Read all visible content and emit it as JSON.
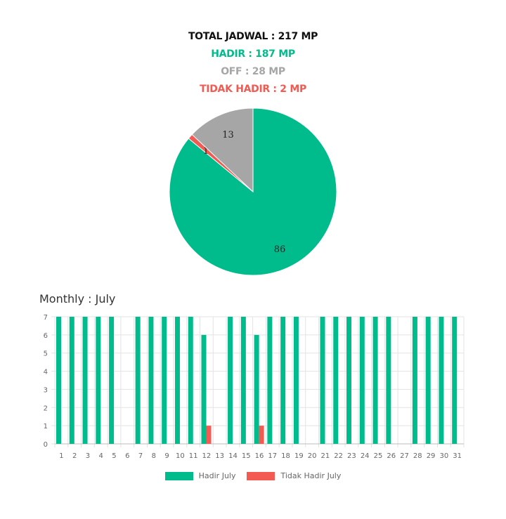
{
  "summary": {
    "total": "TOTAL JADWAL : 217 MP",
    "hadir": "HADIR : 187 MP",
    "off": "OFF : 28 MP",
    "tidak_hadir": "TIDAK HADIR : 2 MP"
  },
  "colors": {
    "hadir": "#00bc8c",
    "off": "#a6a6a6",
    "tidak_hadir": "#f25a52"
  },
  "monthly": {
    "title": "Monthly : July"
  },
  "chart_data": [
    {
      "type": "pie",
      "title": "",
      "slices": [
        {
          "label": "",
          "value": 86,
          "display": "86",
          "color": "#00bc8c"
        },
        {
          "label": "",
          "value": 1,
          "display": "1",
          "color": "#f25a52"
        },
        {
          "label": "",
          "value": 13,
          "display": "13",
          "color": "#a6a6a6"
        }
      ]
    },
    {
      "type": "bar",
      "title": "",
      "xlabel": "",
      "ylabel": "",
      "ylim": [
        0,
        7
      ],
      "yticks": [
        0,
        1,
        2,
        3,
        4,
        5,
        6,
        7
      ],
      "grid": true,
      "legend": "bottom",
      "categories": [
        "1",
        "2",
        "3",
        "4",
        "5",
        "6",
        "7",
        "8",
        "9",
        "10",
        "11",
        "12",
        "13",
        "14",
        "15",
        "16",
        "17",
        "18",
        "19",
        "20",
        "21",
        "22",
        "23",
        "24",
        "25",
        "26",
        "27",
        "28",
        "29",
        "30",
        "31"
      ],
      "series": [
        {
          "name": "Hadir July",
          "color": "#00bc8c",
          "values": [
            7,
            7,
            7,
            7,
            7,
            0,
            7,
            7,
            7,
            7,
            7,
            6,
            0,
            7,
            7,
            6,
            7,
            7,
            7,
            0,
            7,
            7,
            7,
            7,
            7,
            7,
            0,
            7,
            7,
            7,
            7
          ]
        },
        {
          "name": "Tidak Hadir July",
          "color": "#f25a52",
          "values": [
            0,
            0,
            0,
            0,
            0,
            0,
            0,
            0,
            0,
            0,
            0,
            1,
            0,
            0,
            0,
            1,
            0,
            0,
            0,
            0,
            0,
            0,
            0,
            0,
            0,
            0,
            0,
            0,
            0,
            0,
            0
          ]
        }
      ]
    }
  ]
}
